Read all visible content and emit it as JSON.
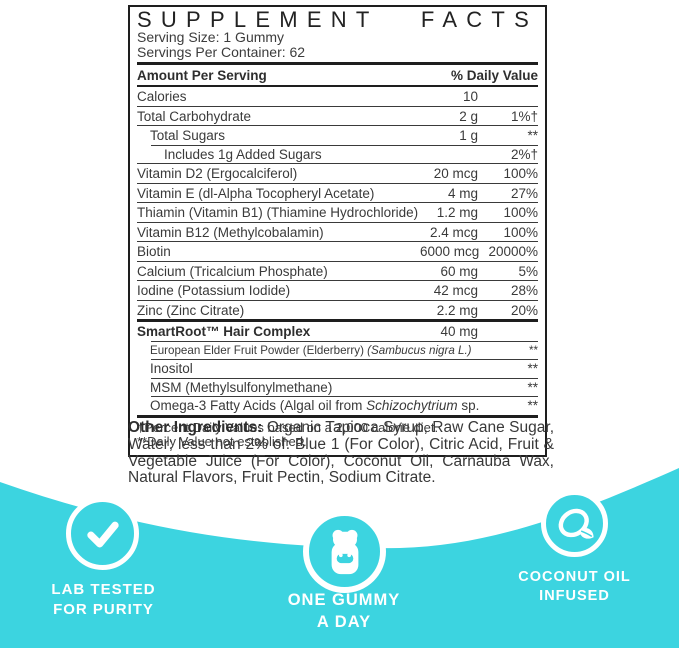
{
  "label": {
    "title_words": [
      "SUPPLEMENT",
      "FACTS"
    ],
    "serving_size": "Serving Size: 1 Gummy",
    "servings_per_container": "Servings Per Container: 62",
    "header": {
      "left": "Amount Per Serving",
      "right": "% Daily Value"
    },
    "rows": [
      {
        "parts": [
          {
            "t": "Calories",
            "i": false
          }
        ],
        "amount": "10",
        "dv": "",
        "indent": 0,
        "top": "none",
        "bold": false,
        "small": false
      },
      {
        "parts": [
          {
            "t": "Total Carbohydrate",
            "i": false
          }
        ],
        "amount": "2 g",
        "dv": "1%†",
        "indent": 0,
        "top": "thin",
        "bold": false,
        "small": false
      },
      {
        "parts": [
          {
            "t": "Total Sugars",
            "i": false
          }
        ],
        "amount": "1 g",
        "dv": "**",
        "indent": 1,
        "top": "thin",
        "bold": false,
        "small": false
      },
      {
        "parts": [
          {
            "t": "Includes 1g Added Sugars",
            "i": false
          }
        ],
        "amount": "",
        "dv": "2%†",
        "indent": 2,
        "top": "ind",
        "bold": false,
        "small": false
      },
      {
        "parts": [
          {
            "t": "Vitamin D2 (Ergocalciferol)",
            "i": false
          }
        ],
        "amount": "20 mcg",
        "dv": "100%",
        "indent": 0,
        "top": "thin",
        "bold": false,
        "small": false
      },
      {
        "parts": [
          {
            "t": "Vitamin E (dl-Alpha Tocopheryl Acetate)",
            "i": false
          }
        ],
        "amount": "4 mg",
        "dv": "27%",
        "indent": 0,
        "top": "thin",
        "bold": false,
        "small": false
      },
      {
        "parts": [
          {
            "t": "Thiamin (Vitamin B1) (Thiamine Hydrochloride)",
            "i": false
          }
        ],
        "amount": "1.2 mg",
        "dv": "100%",
        "indent": 0,
        "top": "thin",
        "bold": false,
        "small": false
      },
      {
        "parts": [
          {
            "t": "Vitamin B12 (Methylcobalamin)",
            "i": false
          }
        ],
        "amount": "2.4 mcg",
        "dv": "100%",
        "indent": 0,
        "top": "thin",
        "bold": false,
        "small": false
      },
      {
        "parts": [
          {
            "t": "Biotin",
            "i": false
          }
        ],
        "amount": "6000 mcg",
        "dv": "20000%",
        "indent": 0,
        "top": "thin",
        "bold": false,
        "small": false
      },
      {
        "parts": [
          {
            "t": "Calcium (Tricalcium Phosphate)",
            "i": false
          }
        ],
        "amount": "60 mg",
        "dv": "5%",
        "indent": 0,
        "top": "thin",
        "bold": false,
        "small": false
      },
      {
        "parts": [
          {
            "t": "Iodine (Potassium Iodide)",
            "i": false
          }
        ],
        "amount": "42 mcg",
        "dv": "28%",
        "indent": 0,
        "top": "thin",
        "bold": false,
        "small": false
      },
      {
        "parts": [
          {
            "t": "Zinc (Zinc Citrate)",
            "i": false
          }
        ],
        "amount": "2.2 mg",
        "dv": "20%",
        "indent": 0,
        "top": "thin",
        "bold": false,
        "small": false
      },
      {
        "parts": [
          {
            "t": "SmartRoot™ Hair Complex",
            "i": false
          }
        ],
        "amount": "40 mg",
        "dv": "",
        "indent": 0,
        "top": "thick",
        "bold": true,
        "small": false
      },
      {
        "parts": [
          {
            "t": "European Elder Fruit Powder (Elderberry) ",
            "i": false
          },
          {
            "t": "(Sambucus nigra L.)",
            "i": true
          }
        ],
        "amount": "",
        "dv": "**",
        "indent": 1,
        "top": "ind",
        "bold": false,
        "small": true
      },
      {
        "parts": [
          {
            "t": "Inositol",
            "i": false
          }
        ],
        "amount": "",
        "dv": "**",
        "indent": 1,
        "top": "ind",
        "bold": false,
        "small": false
      },
      {
        "parts": [
          {
            "t": "MSM (Methylsulfonylmethane)",
            "i": false
          }
        ],
        "amount": "",
        "dv": "**",
        "indent": 1,
        "top": "ind",
        "bold": false,
        "small": false
      },
      {
        "parts": [
          {
            "t": "Omega-3 Fatty Acids (Algal oil from ",
            "i": false
          },
          {
            "t": "Schizochytrium",
            "i": true
          },
          {
            "t": " sp.)",
            "i": false
          }
        ],
        "amount": "",
        "dv": "**",
        "indent": 1,
        "top": "ind",
        "bold": false,
        "small": false
      }
    ],
    "footnotes": [
      "†Percent Daily Values based on a 2,000 calorie diet.",
      "**Daily Value not established."
    ]
  },
  "other_ingredients": {
    "label": "Other Ingredients:",
    "text": "Organic Tapioca Syrup, Raw Cane Sugar, Water; less than 2% of: Blue 1 (For Color), Citric Acid, Fruit & Vegetable Juice (For Color), Coconut Oil, Carnauba Wax, Natural Flavors, Fruit Pectin, Sodium Citrate."
  },
  "badges": [
    {
      "icon": "checkmark-icon",
      "lines": [
        "LAB TESTED",
        "FOR PURITY"
      ]
    },
    {
      "icon": "gummy-bear-icon",
      "lines": [
        "ONE GUMMY",
        "A DAY"
      ]
    },
    {
      "icon": "coconut-icon",
      "lines": [
        "COCONUT OIL",
        "INFUSED"
      ]
    }
  ],
  "colors": {
    "accent": "#3cd4e0",
    "text": "#3a3a3a",
    "border": "#1e1e1e"
  }
}
